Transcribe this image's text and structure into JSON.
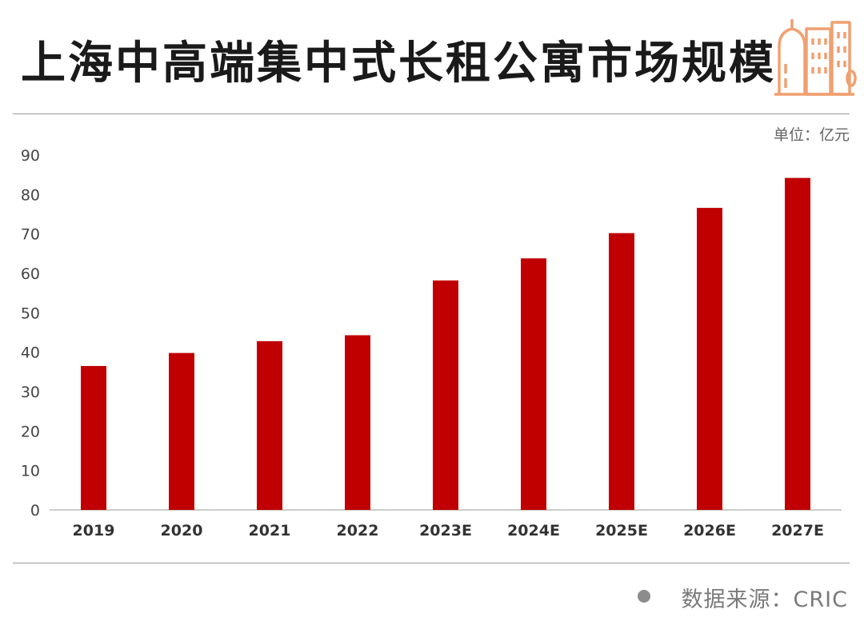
{
  "title": "上海中高端集中式长租公寓市场规模",
  "unit_label": "单位：亿元",
  "source_label": "数据来源：CRIC",
  "header_icon": "building-icon",
  "colors": {
    "bar": "#c00000",
    "title": "#1a1a1a",
    "icon": "#f0a070"
  },
  "chart_data": {
    "type": "bar",
    "title": "",
    "xlabel": "",
    "ylabel": "",
    "categories": [
      "2019",
      "2020",
      "2021",
      "2022",
      "2023E",
      "2024E",
      "2025E",
      "2026E",
      "2027E"
    ],
    "series": [
      {
        "values": [
          36.5,
          39.8,
          42.8,
          44.3,
          58.2,
          63.8,
          70.2,
          76.6,
          84.2
        ]
      }
    ],
    "ylim": [
      0,
      90
    ],
    "yticks": [
      0,
      10,
      20,
      30,
      40,
      50,
      60,
      70,
      80,
      90
    ],
    "grid": false,
    "legend": "none"
  }
}
